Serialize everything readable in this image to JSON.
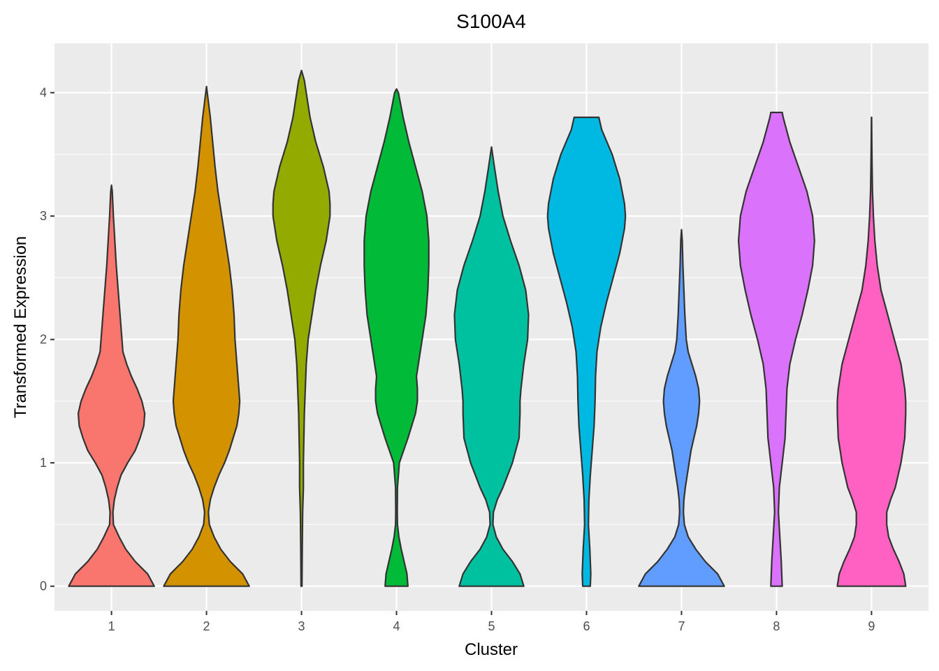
{
  "chart_data": {
    "type": "violin",
    "title": "S100A4",
    "xlabel": "Cluster",
    "ylabel": "Transformed Expression",
    "categories": [
      "1",
      "2",
      "3",
      "4",
      "5",
      "6",
      "7",
      "8",
      "9"
    ],
    "ylim": [
      -0.2,
      4.4
    ],
    "yticks": [
      0,
      1,
      2,
      3,
      4
    ],
    "grid": true,
    "legend": "none",
    "series": [
      {
        "category": "1",
        "color": "#F8766D",
        "ymin": 0,
        "ymax": 3.25,
        "profile": [
          [
            0,
            0.45
          ],
          [
            0.1,
            0.38
          ],
          [
            0.2,
            0.25
          ],
          [
            0.3,
            0.15
          ],
          [
            0.4,
            0.08
          ],
          [
            0.5,
            0.02
          ],
          [
            0.6,
            0.015
          ],
          [
            0.7,
            0.03
          ],
          [
            0.8,
            0.06
          ],
          [
            0.9,
            0.1
          ],
          [
            1.0,
            0.17
          ],
          [
            1.1,
            0.25
          ],
          [
            1.2,
            0.3
          ],
          [
            1.3,
            0.34
          ],
          [
            1.4,
            0.35
          ],
          [
            1.5,
            0.32
          ],
          [
            1.6,
            0.27
          ],
          [
            1.7,
            0.21
          ],
          [
            1.8,
            0.16
          ],
          [
            1.9,
            0.12
          ],
          [
            2.0,
            0.11
          ],
          [
            2.2,
            0.09
          ],
          [
            2.4,
            0.07
          ],
          [
            2.6,
            0.05
          ],
          [
            2.8,
            0.035
          ],
          [
            3.0,
            0.02
          ],
          [
            3.2,
            0.008
          ],
          [
            3.25,
            0.0
          ]
        ]
      },
      {
        "category": "2",
        "color": "#D39200",
        "ymin": 0,
        "ymax": 4.05,
        "profile": [
          [
            0,
            0.45
          ],
          [
            0.1,
            0.38
          ],
          [
            0.2,
            0.25
          ],
          [
            0.3,
            0.15
          ],
          [
            0.4,
            0.08
          ],
          [
            0.5,
            0.03
          ],
          [
            0.6,
            0.02
          ],
          [
            0.7,
            0.04
          ],
          [
            0.8,
            0.08
          ],
          [
            0.9,
            0.13
          ],
          [
            1.0,
            0.19
          ],
          [
            1.1,
            0.24
          ],
          [
            1.2,
            0.28
          ],
          [
            1.3,
            0.32
          ],
          [
            1.4,
            0.34
          ],
          [
            1.5,
            0.35
          ],
          [
            1.6,
            0.34
          ],
          [
            1.7,
            0.33
          ],
          [
            1.8,
            0.32
          ],
          [
            2.0,
            0.3
          ],
          [
            2.2,
            0.29
          ],
          [
            2.4,
            0.27
          ],
          [
            2.6,
            0.24
          ],
          [
            2.8,
            0.2
          ],
          [
            3.0,
            0.16
          ],
          [
            3.2,
            0.12
          ],
          [
            3.4,
            0.09
          ],
          [
            3.6,
            0.065
          ],
          [
            3.8,
            0.04
          ],
          [
            4.0,
            0.008
          ],
          [
            4.05,
            0.0
          ]
        ]
      },
      {
        "category": "3",
        "color": "#93AA00",
        "ymin": 0,
        "ymax": 4.18,
        "profile": [
          [
            0,
            0.005
          ],
          [
            0.3,
            0.008
          ],
          [
            0.6,
            0.012
          ],
          [
            0.8,
            0.02
          ],
          [
            1.0,
            0.02
          ],
          [
            1.2,
            0.025
          ],
          [
            1.4,
            0.03
          ],
          [
            1.6,
            0.04
          ],
          [
            1.8,
            0.05
          ],
          [
            2.0,
            0.07
          ],
          [
            2.2,
            0.11
          ],
          [
            2.4,
            0.15
          ],
          [
            2.6,
            0.2
          ],
          [
            2.8,
            0.26
          ],
          [
            3.0,
            0.3
          ],
          [
            3.1,
            0.3
          ],
          [
            3.2,
            0.29
          ],
          [
            3.4,
            0.23
          ],
          [
            3.6,
            0.15
          ],
          [
            3.8,
            0.09
          ],
          [
            4.0,
            0.05
          ],
          [
            4.1,
            0.03
          ],
          [
            4.18,
            0.0
          ]
        ]
      },
      {
        "category": "4",
        "color": "#00BA38",
        "ymin": 0,
        "ymax": 4.03,
        "profile": [
          [
            0,
            0.12
          ],
          [
            0.1,
            0.11
          ],
          [
            0.2,
            0.08
          ],
          [
            0.3,
            0.05
          ],
          [
            0.4,
            0.025
          ],
          [
            0.5,
            0.01
          ],
          [
            0.6,
            0.008
          ],
          [
            0.8,
            0.01
          ],
          [
            1.0,
            0.03
          ],
          [
            1.2,
            0.12
          ],
          [
            1.4,
            0.2
          ],
          [
            1.5,
            0.22
          ],
          [
            1.6,
            0.22
          ],
          [
            1.7,
            0.21
          ],
          [
            1.8,
            0.23
          ],
          [
            2.0,
            0.27
          ],
          [
            2.2,
            0.31
          ],
          [
            2.4,
            0.33
          ],
          [
            2.6,
            0.34
          ],
          [
            2.8,
            0.34
          ],
          [
            3.0,
            0.32
          ],
          [
            3.2,
            0.27
          ],
          [
            3.4,
            0.2
          ],
          [
            3.6,
            0.13
          ],
          [
            3.8,
            0.07
          ],
          [
            4.0,
            0.02
          ],
          [
            4.03,
            0.0
          ]
        ]
      },
      {
        "category": "5",
        "color": "#00C19F",
        "ymin": 0,
        "ymax": 3.56,
        "profile": [
          [
            0,
            0.34
          ],
          [
            0.1,
            0.3
          ],
          [
            0.2,
            0.22
          ],
          [
            0.3,
            0.12
          ],
          [
            0.4,
            0.05
          ],
          [
            0.5,
            0.015
          ],
          [
            0.6,
            0.02
          ],
          [
            0.7,
            0.06
          ],
          [
            0.8,
            0.12
          ],
          [
            0.9,
            0.17
          ],
          [
            1.0,
            0.22
          ],
          [
            1.2,
            0.29
          ],
          [
            1.4,
            0.3
          ],
          [
            1.5,
            0.3
          ],
          [
            1.6,
            0.31
          ],
          [
            1.8,
            0.34
          ],
          [
            2.0,
            0.38
          ],
          [
            2.2,
            0.39
          ],
          [
            2.4,
            0.36
          ],
          [
            2.6,
            0.29
          ],
          [
            2.8,
            0.2
          ],
          [
            3.0,
            0.12
          ],
          [
            3.2,
            0.07
          ],
          [
            3.4,
            0.03
          ],
          [
            3.56,
            0.0
          ]
        ]
      },
      {
        "category": "6",
        "color": "#00B9E3",
        "ymin": 0,
        "ymax": 3.8,
        "profile": [
          [
            0,
            0.04
          ],
          [
            0.1,
            0.045
          ],
          [
            0.3,
            0.035
          ],
          [
            0.5,
            0.02
          ],
          [
            0.7,
            0.025
          ],
          [
            0.9,
            0.04
          ],
          [
            1.1,
            0.06
          ],
          [
            1.3,
            0.08
          ],
          [
            1.5,
            0.09
          ],
          [
            1.7,
            0.095
          ],
          [
            1.9,
            0.11
          ],
          [
            2.1,
            0.15
          ],
          [
            2.3,
            0.21
          ],
          [
            2.5,
            0.28
          ],
          [
            2.7,
            0.35
          ],
          [
            2.9,
            0.4
          ],
          [
            3.0,
            0.41
          ],
          [
            3.1,
            0.4
          ],
          [
            3.3,
            0.35
          ],
          [
            3.5,
            0.27
          ],
          [
            3.7,
            0.16
          ],
          [
            3.8,
            0.13
          ]
        ]
      },
      {
        "category": "7",
        "color": "#619CFF",
        "ymin": 0,
        "ymax": 2.89,
        "profile": [
          [
            0,
            0.45
          ],
          [
            0.1,
            0.38
          ],
          [
            0.2,
            0.25
          ],
          [
            0.3,
            0.15
          ],
          [
            0.4,
            0.07
          ],
          [
            0.5,
            0.03
          ],
          [
            0.6,
            0.02
          ],
          [
            0.7,
            0.025
          ],
          [
            0.8,
            0.04
          ],
          [
            0.9,
            0.06
          ],
          [
            1.0,
            0.08
          ],
          [
            1.1,
            0.1
          ],
          [
            1.2,
            0.13
          ],
          [
            1.3,
            0.16
          ],
          [
            1.4,
            0.18
          ],
          [
            1.5,
            0.19
          ],
          [
            1.6,
            0.18
          ],
          [
            1.7,
            0.15
          ],
          [
            1.8,
            0.11
          ],
          [
            1.9,
            0.07
          ],
          [
            2.0,
            0.05
          ],
          [
            2.2,
            0.035
          ],
          [
            2.4,
            0.025
          ],
          [
            2.6,
            0.015
          ],
          [
            2.8,
            0.008
          ],
          [
            2.89,
            0.0
          ]
        ]
      },
      {
        "category": "8",
        "color": "#DB72FB",
        "ymin": 0,
        "ymax": 3.84,
        "profile": [
          [
            0,
            0.06
          ],
          [
            0.2,
            0.05
          ],
          [
            0.4,
            0.035
          ],
          [
            0.6,
            0.02
          ],
          [
            0.8,
            0.03
          ],
          [
            1.0,
            0.06
          ],
          [
            1.2,
            0.09
          ],
          [
            1.4,
            0.1
          ],
          [
            1.6,
            0.11
          ],
          [
            1.8,
            0.14
          ],
          [
            2.0,
            0.2
          ],
          [
            2.2,
            0.27
          ],
          [
            2.4,
            0.33
          ],
          [
            2.6,
            0.38
          ],
          [
            2.8,
            0.4
          ],
          [
            3.0,
            0.38
          ],
          [
            3.2,
            0.32
          ],
          [
            3.4,
            0.23
          ],
          [
            3.6,
            0.14
          ],
          [
            3.8,
            0.07
          ],
          [
            3.84,
            0.06
          ]
        ]
      },
      {
        "category": "9",
        "color": "#FF61C3",
        "ymin": 0,
        "ymax": 3.8,
        "profile": [
          [
            0,
            0.36
          ],
          [
            0.1,
            0.34
          ],
          [
            0.2,
            0.29
          ],
          [
            0.3,
            0.23
          ],
          [
            0.4,
            0.18
          ],
          [
            0.5,
            0.16
          ],
          [
            0.6,
            0.16
          ],
          [
            0.7,
            0.2
          ],
          [
            0.8,
            0.25
          ],
          [
            1.0,
            0.31
          ],
          [
            1.2,
            0.35
          ],
          [
            1.4,
            0.36
          ],
          [
            1.5,
            0.36
          ],
          [
            1.6,
            0.35
          ],
          [
            1.8,
            0.31
          ],
          [
            2.0,
            0.24
          ],
          [
            2.2,
            0.17
          ],
          [
            2.4,
            0.1
          ],
          [
            2.6,
            0.06
          ],
          [
            2.8,
            0.035
          ],
          [
            3.0,
            0.02
          ],
          [
            3.2,
            0.01
          ],
          [
            3.4,
            0.006
          ],
          [
            3.6,
            0.003
          ],
          [
            3.8,
            0.001
          ]
        ]
      }
    ]
  }
}
